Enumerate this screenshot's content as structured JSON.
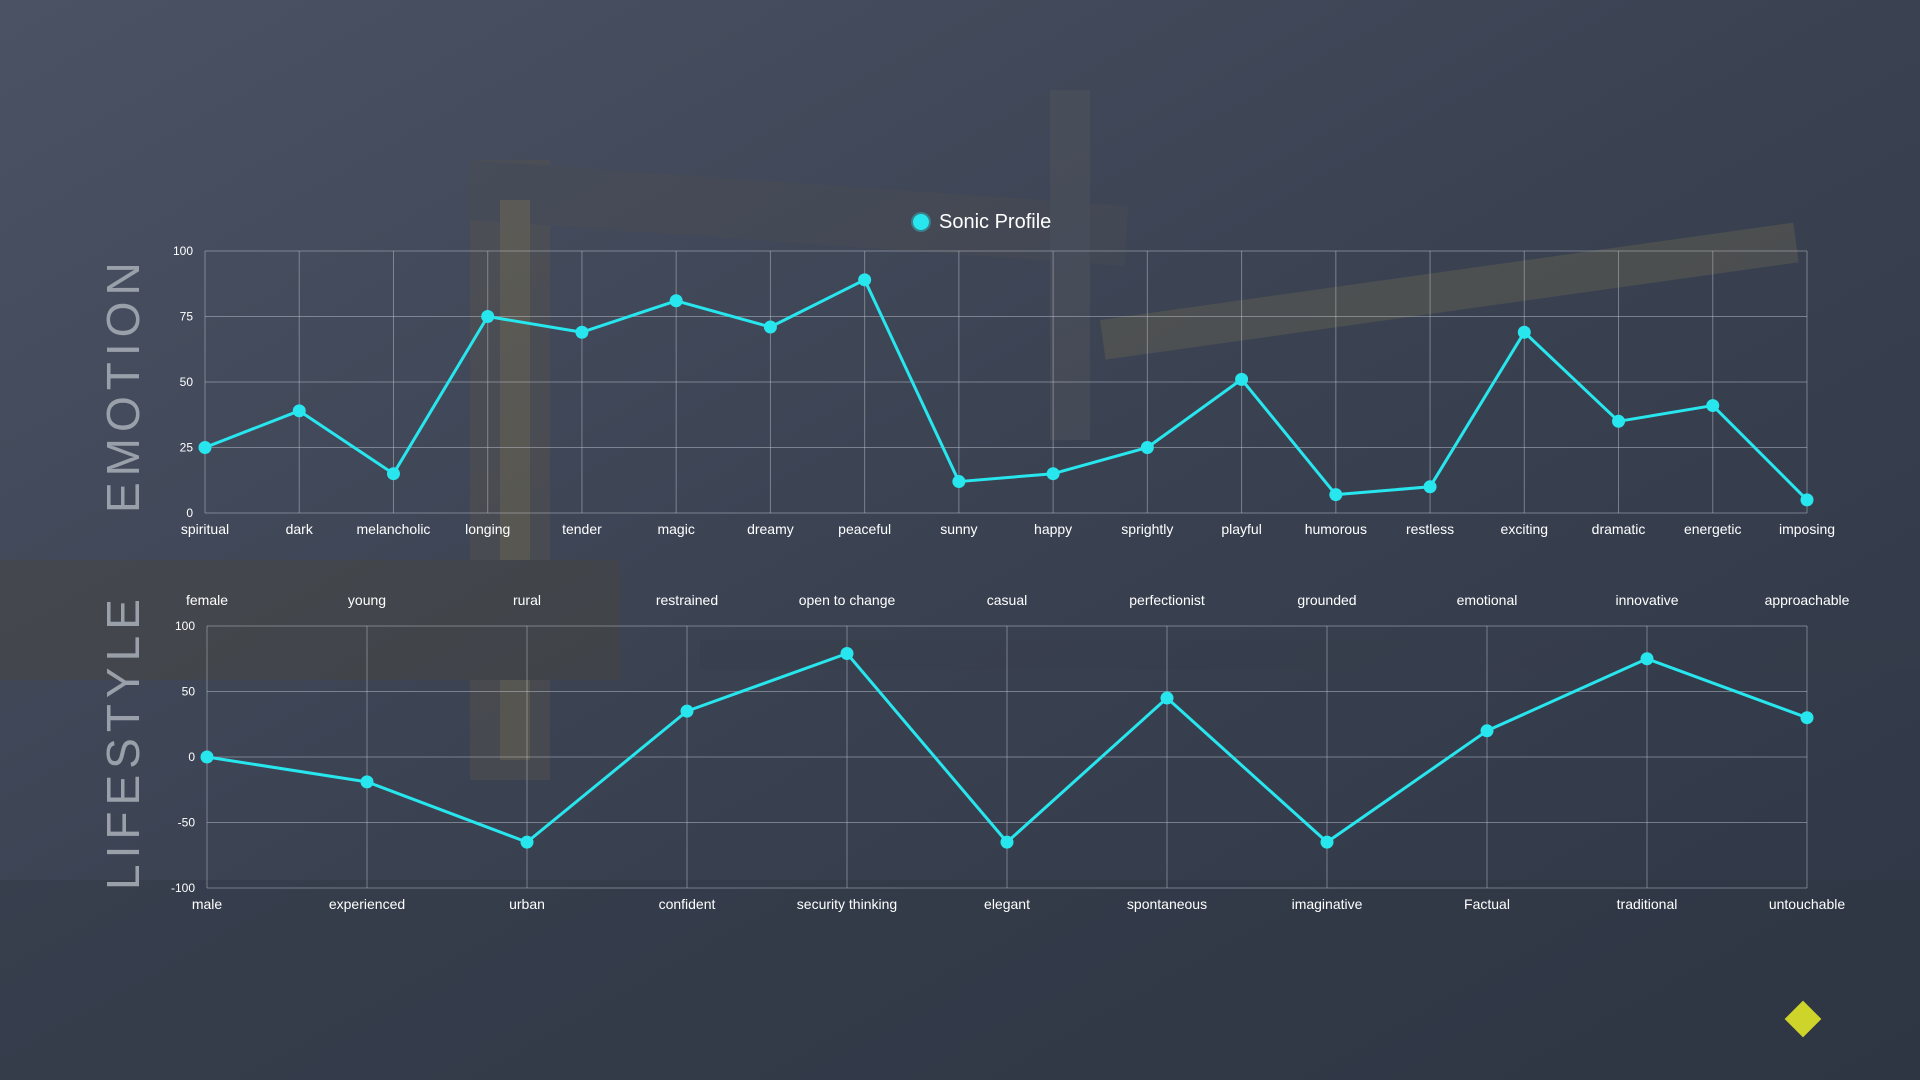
{
  "colors": {
    "line": "#28e6ee",
    "grid": "rgba(200,205,215,0.45)",
    "text": "#ffffff",
    "section_title": "#9aa0aa",
    "accent": "#cfd42a"
  },
  "legend": {
    "label": "Sonic Profile",
    "icon": "legend-dot-icon"
  },
  "sections": {
    "emotion": "EMOTION",
    "lifestyle": "LIFESTYLE"
  },
  "decoration": {
    "icon": "diamond-icon"
  },
  "chart_data": [
    {
      "type": "line",
      "title": "",
      "xlabel": "",
      "ylabel": "",
      "ylim": [
        0,
        100
      ],
      "yticks": [
        0,
        25,
        50,
        75,
        100
      ],
      "grid": true,
      "legend_placement": "top-center",
      "categories": [
        "spiritual",
        "dark",
        "melancholic",
        "longing",
        "tender",
        "magic",
        "dreamy",
        "peaceful",
        "sunny",
        "happy",
        "sprightly",
        "playful",
        "humorous",
        "restless",
        "exciting",
        "dramatic",
        "energetic",
        "imposing"
      ],
      "series": [
        {
          "name": "Sonic Profile",
          "values": [
            25,
            39,
            15,
            75,
            69,
            81,
            71,
            89,
            12,
            15,
            25,
            51,
            7,
            10,
            69,
            35,
            41,
            5
          ]
        }
      ]
    },
    {
      "type": "line",
      "title": "",
      "xlabel": "",
      "ylabel": "",
      "ylim": [
        -100,
        100
      ],
      "yticks": [
        -100,
        -50,
        0,
        50,
        100
      ],
      "grid": true,
      "categories_top": [
        "female",
        "young",
        "rural",
        "restrained",
        "open to change",
        "casual",
        "perfectionist",
        "grounded",
        "emotional",
        "innovative",
        "approachable"
      ],
      "categories": [
        "male",
        "experienced",
        "urban",
        "confident",
        "security thinking",
        "elegant",
        "spontaneous",
        "imaginative",
        "Factual",
        "traditional",
        "untouchable"
      ],
      "series": [
        {
          "name": "Sonic Profile",
          "values": [
            0,
            -19,
            -65,
            35,
            79,
            -65,
            45,
            -65,
            20,
            75,
            30
          ]
        }
      ]
    }
  ]
}
